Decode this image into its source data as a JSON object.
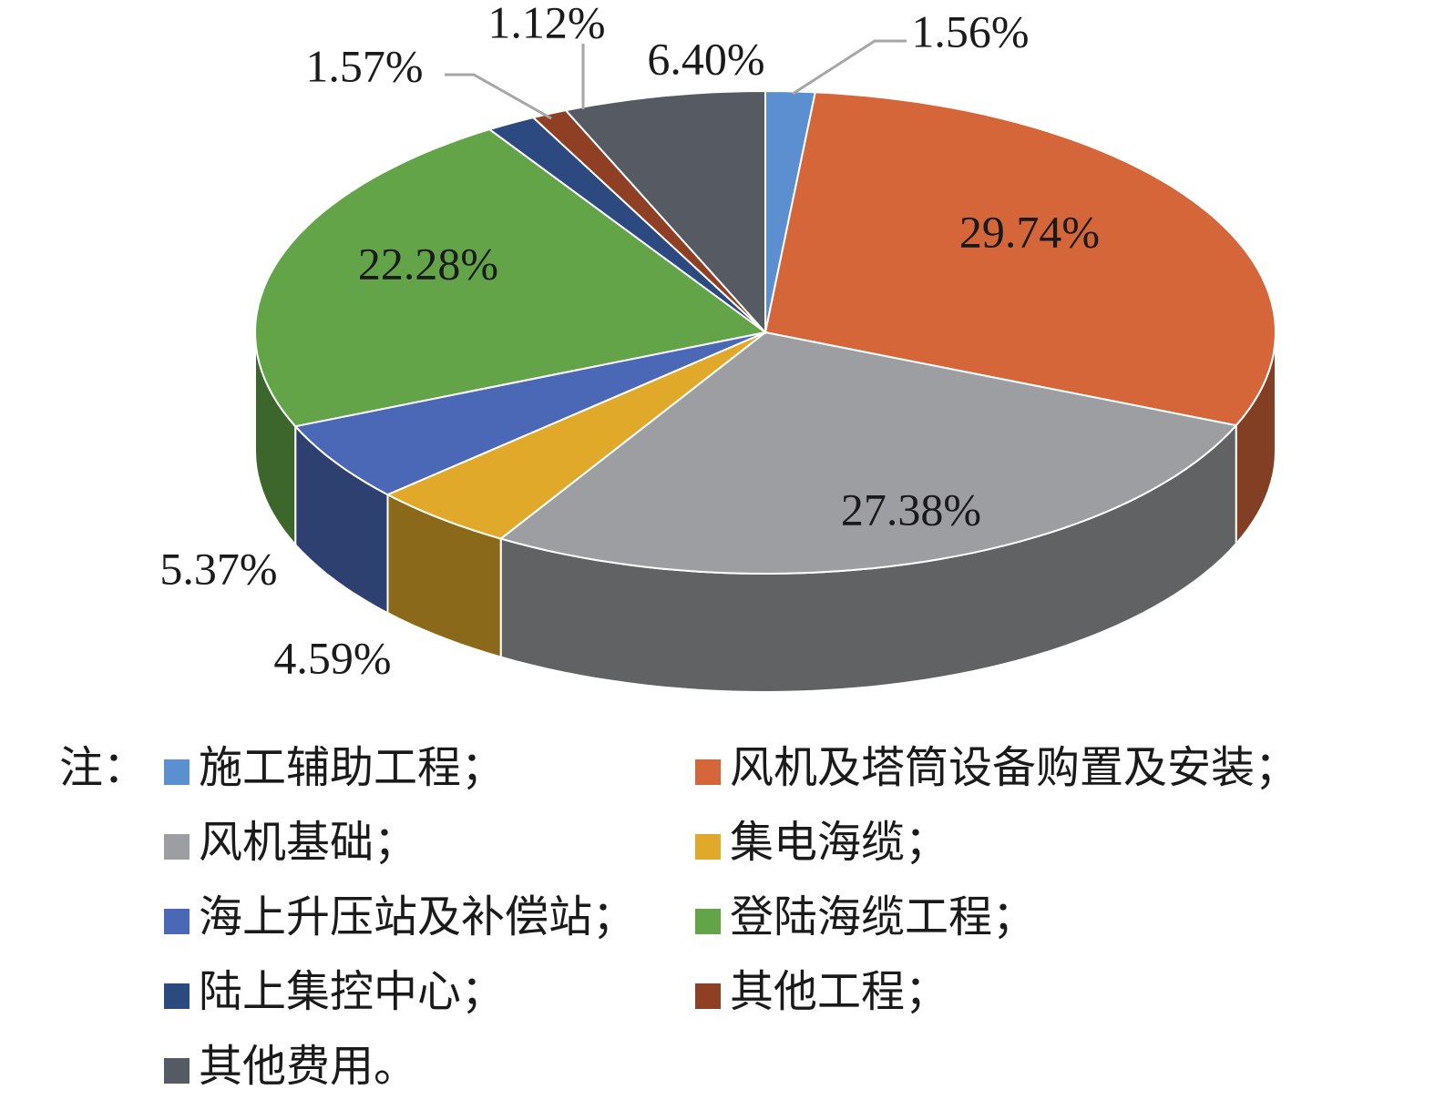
{
  "chart_data": {
    "type": "pie3d",
    "legend_title": "注：",
    "categories": [
      "施工辅助工程；",
      "风机及塔筒设备购置及安装；",
      "风机基础；",
      "集电海缆；",
      "海上升压站及补偿站；",
      "登陆海缆工程；",
      "陆上集控中心；",
      "其他工程；",
      "其他费用。"
    ],
    "values": [
      1.56,
      29.74,
      27.38,
      4.59,
      5.37,
      22.28,
      1.57,
      1.12,
      6.4
    ],
    "value_labels": [
      "1.56%",
      "29.74%",
      "27.38%",
      "4.59%",
      "5.37%",
      "22.28%",
      "1.57%",
      "1.12%",
      "6.40%"
    ],
    "colors": [
      "#5b8fcf",
      "#d4663a",
      "#9d9ea2",
      "#e0a92a",
      "#4a68b5",
      "#62a447",
      "#2c4a80",
      "#8e3f24",
      "#565a62"
    ]
  }
}
